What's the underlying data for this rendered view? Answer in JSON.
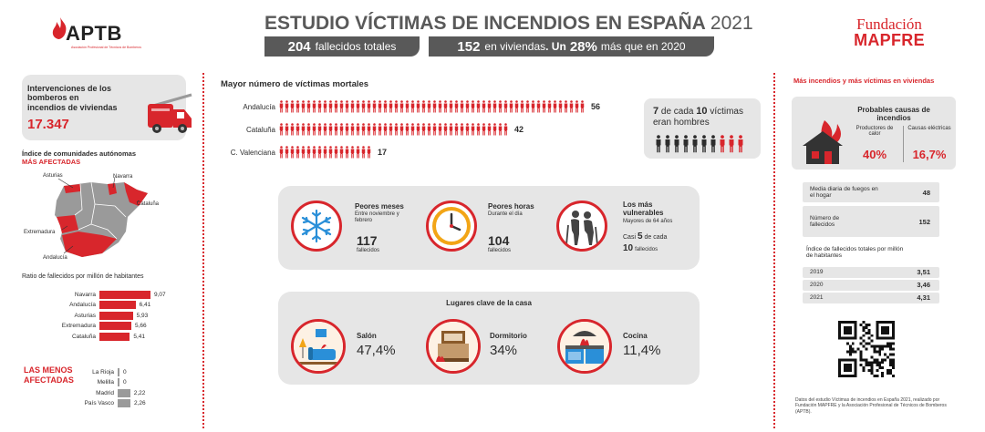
{
  "header": {
    "org_logo_text": "APTB",
    "org_logo_sub": "Asociación Profesional de Técnicos de Bomberos",
    "title": "ESTUDIO VÍCTIMAS DE INCENDIOS EN ESPAÑA",
    "year": "2021",
    "deaths_total_value": "204",
    "deaths_total_label": "fallecidos totales",
    "homes_value": "152",
    "homes_label": "en viviendas",
    "homes_sep": ". Un",
    "increase_value": "28%",
    "increase_label": "más que en 2020",
    "sponsor_line1": "Fundación",
    "sponsor_line2": "MAPFRE"
  },
  "interventions": {
    "label": "Intervenciones de los bomberos en incendios de viviendas",
    "value": "17.347"
  },
  "regions_map": {
    "heading_line1": "Índice de comunidades autónomas",
    "heading_line2": "MÁS AFECTADAS",
    "labels": [
      "Asturias",
      "Navarra",
      "Cataluña",
      "Extremadura",
      "Andalucía"
    ]
  },
  "ratio_chart": {
    "heading": "Ratio de fallecidos por millón de habitantes",
    "most": [
      {
        "name": "Navarra",
        "value": "9,07",
        "num": 9.07
      },
      {
        "name": "Andalucía",
        "value": "6,41",
        "num": 6.41
      },
      {
        "name": "Asturias",
        "value": "5,93",
        "num": 5.93
      },
      {
        "name": "Extremadura",
        "value": "5,66",
        "num": 5.66
      },
      {
        "name": "Cataluña",
        "value": "5,41",
        "num": 5.41
      }
    ],
    "least_heading_line1": "LAS MENOS",
    "least_heading_line2": "AFECTADAS",
    "least": [
      {
        "name": "La Rioja",
        "value": "0",
        "num": 0
      },
      {
        "name": "Melilla",
        "value": "0",
        "num": 0
      },
      {
        "name": "Madrid",
        "value": "2,22",
        "num": 2.22
      },
      {
        "name": "País Vasco",
        "value": "2,26",
        "num": 2.26
      }
    ]
  },
  "victims": {
    "heading": "Mayor número de víctimas mortales",
    "rows": [
      {
        "name": "Andalucía",
        "value": "56",
        "num": 56
      },
      {
        "name": "Cataluña",
        "value": "42",
        "num": 42
      },
      {
        "name": "C. Valenciana",
        "value": "17",
        "num": 17
      }
    ],
    "men_a": "7",
    "men_b": "de cada",
    "men_c": "10",
    "men_d": "víctimas",
    "men_e": "eran hombres",
    "men_count": 7,
    "total_count": 10
  },
  "stats": {
    "months_title": "Peores meses",
    "months_sub": "Entre noviembre y febrero",
    "months_value": "117",
    "months_unit": "fallecidos",
    "hours_title": "Peores horas",
    "hours_sub": "Durante el día",
    "hours_value": "104",
    "hours_unit": "fallecidos",
    "vuln_title": "Los más vulnerables",
    "vuln_sub": "Mayores de 64 años",
    "vuln_a": "Casi",
    "vuln_b": "5",
    "vuln_c": "de cada",
    "vuln_d": "10",
    "vuln_e": "fallecidos"
  },
  "places": {
    "heading": "Lugares clave de la casa",
    "items": [
      {
        "name": "Salón",
        "value": "47,4%"
      },
      {
        "name": "Dormitorio",
        "value": "34%"
      },
      {
        "name": "Cocina",
        "value": "11,4%"
      }
    ]
  },
  "right": {
    "heading": "Más incendios y más víctimas en viviendas",
    "causes_title": "Probables causas de incendios",
    "cause1_label": "Productores de calor",
    "cause1_value": "40%",
    "cause2_label": "Causas eléctricas",
    "cause2_value": "16,7%",
    "daily_label": "Media diaria de fuegos en el hogar",
    "daily_value": "48",
    "deaths_label": "Número de fallecidos",
    "deaths_value": "152",
    "index_heading": "Índice de fallecidos totales por millón de habitantes",
    "index_rows": [
      {
        "year": "2019",
        "value": "3,51"
      },
      {
        "year": "2020",
        "value": "3,46"
      },
      {
        "year": "2021",
        "value": "4,31"
      }
    ],
    "footnote": "Datos del estudio Víctimas de incendios en España 2021, realizado por Fundación MAPFRE y la Asociación Profesional de Técnicos de Bomberos (APTB)."
  },
  "colors": {
    "accent": "#d8262c",
    "dark": "#595959",
    "panel": "#e6e6e6"
  }
}
